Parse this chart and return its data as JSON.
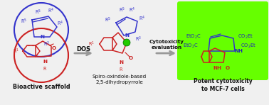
{
  "bg_color": "#f0f0f0",
  "green_box_color": "#66ff00",
  "blue_circle_color": "#3333cc",
  "red_circle_color": "#cc2222",
  "arrow_color": "#999999",
  "text_blue": "#2222bb",
  "text_red": "#cc2222",
  "text_black": "#111111",
  "figsize": [
    3.78,
    1.48
  ],
  "dpi": 100,
  "label_bioactive": "Bioactive scaffold",
  "label_spiro": "Spiro-oxindole-based\n2,5-dihydropyrrole",
  "label_cytotox": "Potent cytotoxicity\nto MCF-7 cells",
  "label_DOS": "DOS",
  "label_cyto_eval": "Cytotoxicity\nevaluation"
}
